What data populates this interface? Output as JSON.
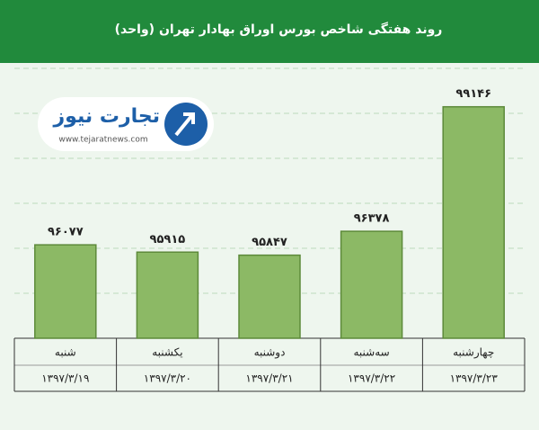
{
  "chart_data": {
    "type": "bar",
    "title": "روند هفتگی شاخص بورس اوراق بهادار تهران (واحد)",
    "categories": [
      "شنبه",
      "یکشنبه",
      "دوشنبه",
      "سه‌شنبه",
      "چهارشنبه"
    ],
    "dates": [
      "۱۳۹۷/۳/۱۹",
      "۱۳۹۷/۳/۲۰",
      "۱۳۹۷/۳/۲۱",
      "۱۳۹۷/۳/۲۲",
      "۱۳۹۷/۳/۲۳"
    ],
    "values": [
      96077,
      95915,
      95847,
      96378,
      99146
    ],
    "value_labels": [
      "۹۶۰۷۷",
      "۹۵۹۱۵",
      "۹۵۸۴۷",
      "۹۶۳۷۸",
      "۹۹۱۴۶"
    ],
    "color": "#8cb965",
    "ylim": [
      94000,
      100000
    ],
    "yticks": [
      94000,
      95000,
      96000,
      97000,
      98000,
      99000,
      100000
    ],
    "grid": true
  },
  "logo": {
    "name": "تجارت نیوز",
    "url": "www.tejaratnews.com"
  }
}
